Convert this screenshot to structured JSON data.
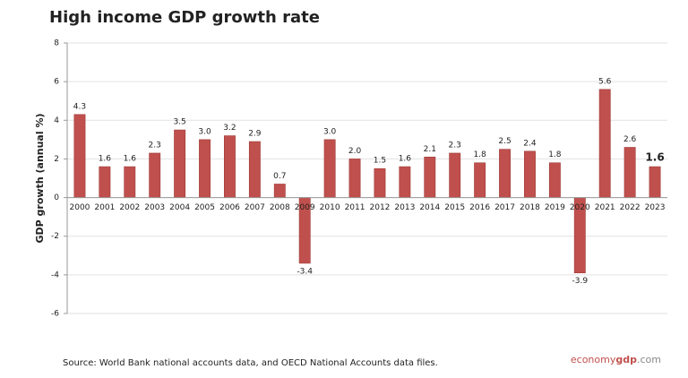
{
  "chart_data": {
    "type": "bar",
    "title": "High income GDP growth rate",
    "y_label": "GDP growth (annual %)",
    "categories": [
      "2000",
      "2001",
      "2002",
      "2003",
      "2004",
      "2005",
      "2006",
      "2007",
      "2008",
      "2009",
      "2010",
      "2011",
      "2012",
      "2013",
      "2014",
      "2015",
      "2016",
      "2017",
      "2018",
      "2019",
      "2020",
      "2021",
      "2022",
      "2023"
    ],
    "values": [
      4.3,
      1.6,
      1.6,
      2.3,
      3.5,
      3.0,
      3.2,
      2.9,
      0.7,
      -3.4,
      3.0,
      2.0,
      1.5,
      1.6,
      2.1,
      2.3,
      1.8,
      2.5,
      2.4,
      1.8,
      -3.9,
      5.6,
      2.6,
      1.6
    ],
    "value_labels": [
      "4.3",
      "1.6",
      "1.6",
      "2.3",
      "3.5",
      "3.0",
      "3.2",
      "2.9",
      "0.7",
      "-3.4",
      "3.0",
      "2.0",
      "1.5",
      "1.6",
      "2.1",
      "2.3",
      "1.8",
      "2.5",
      "2.4",
      "1.8",
      "-3.9",
      "5.6",
      "2.6",
      "1.6"
    ],
    "color": "#c0504d",
    "ylim": [
      -6,
      8
    ],
    "yticks": [
      -6,
      -4,
      -2,
      0,
      2,
      4,
      6,
      8
    ],
    "grid": true,
    "bold_last_label": true,
    "source": "Source: World Bank national accounts data, and OECD National Accounts data files.",
    "brand": [
      "economy",
      "gdp",
      ".com"
    ]
  }
}
